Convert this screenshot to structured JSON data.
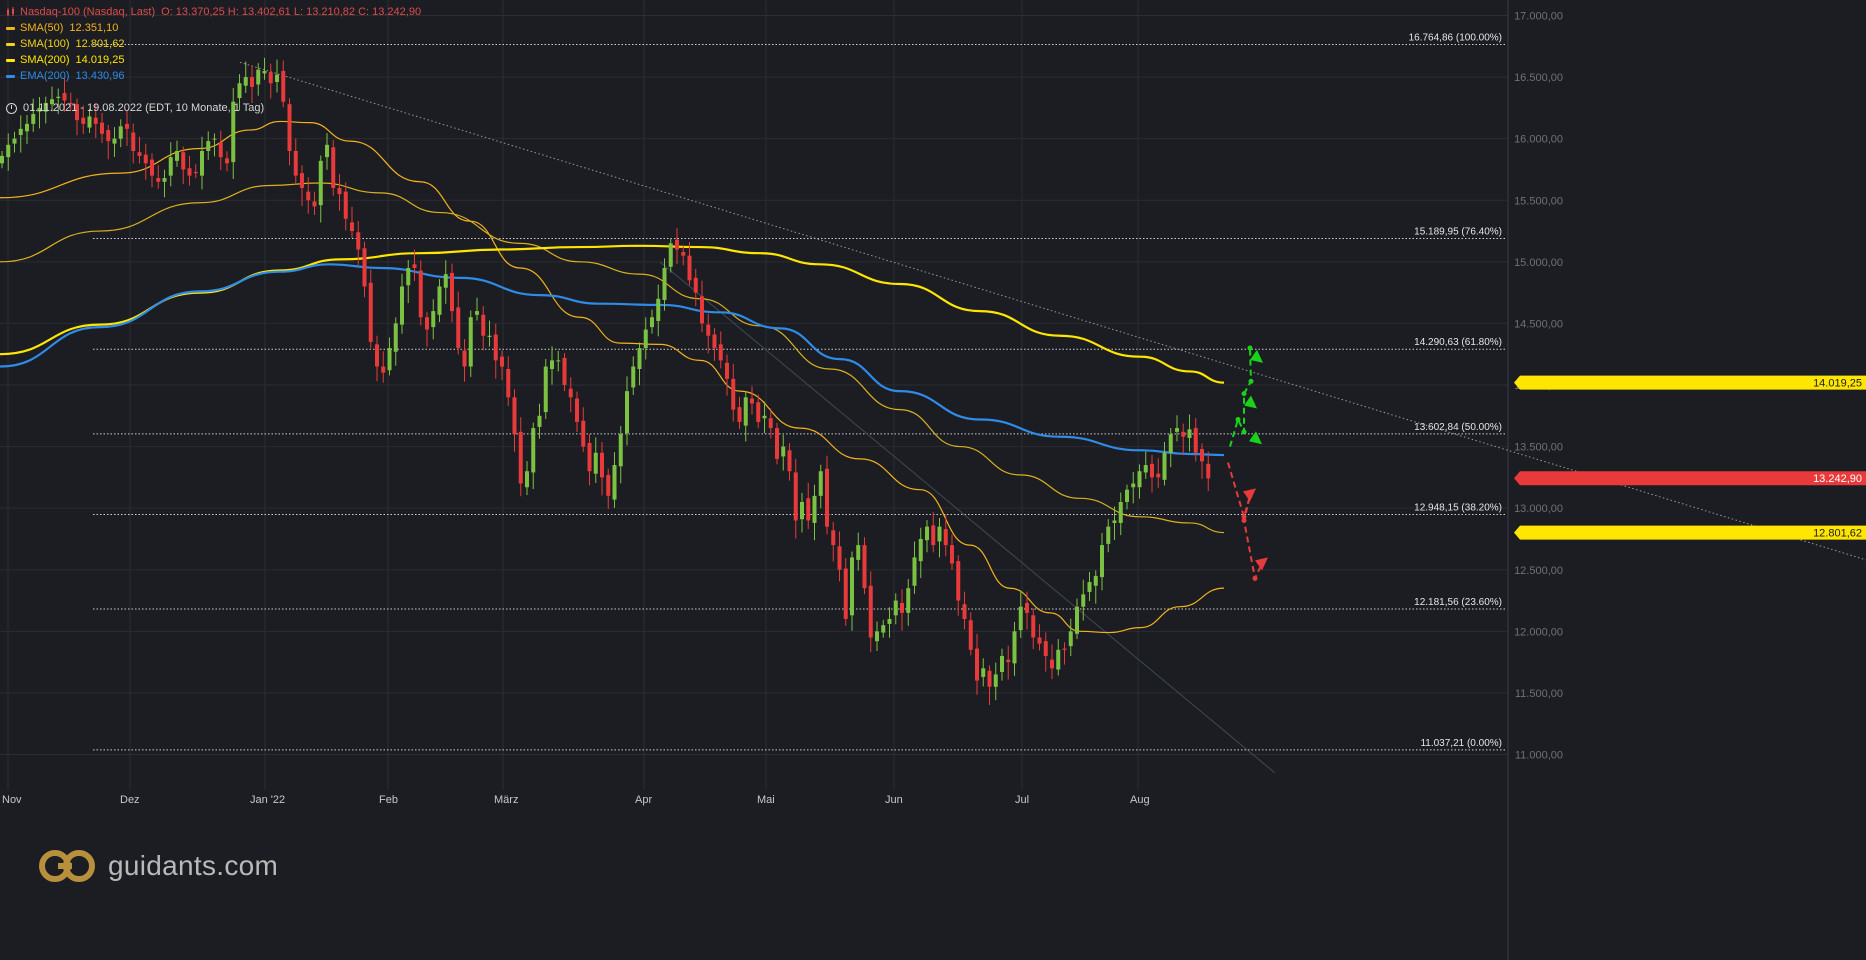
{
  "header": {
    "instrument": "Nasdaq-100 (Nasdaq, Last)",
    "ohlc": "O: 13.370,25  H: 13.402,61  L: 13.210,82  C: 13.242,90",
    "icon": "candlestick-icon"
  },
  "indicators": [
    {
      "label": "SMA(50)",
      "value": "12.351,10",
      "color": "#f3b21c"
    },
    {
      "label": "SMA(100)",
      "value": "12.801,62",
      "color": "#f3d21c"
    },
    {
      "label": "SMA(200)",
      "value": "14.019,25",
      "color": "#ffe600"
    },
    {
      "label": "EMA(200)",
      "value": "13.430,96",
      "color": "#2f8be8"
    }
  ],
  "range_text": "01.11.2021 - 19.08.2022   (EDT, 10 Monate, 1 Tag)",
  "logo_text": "guidants.com",
  "colors": {
    "up": "#7cc242",
    "down": "#e83a3a",
    "bg": "#1b1d22",
    "grid": "#2a2d33",
    "sma50": "#f3b21c",
    "sma100": "#d9b11f",
    "sma200": "#ffe600",
    "ema200": "#2f8be8"
  },
  "chart_data": {
    "type": "candlestick",
    "title": "Nasdaq-100 (Nasdaq, Last)",
    "x_ticks": [
      "Nov",
      "Dez",
      "Jan '22",
      "Feb",
      "März",
      "Apr",
      "Mai",
      "Jun",
      "Jul",
      "Aug"
    ],
    "y_ticks": [
      "17.000,00",
      "16.500,00",
      "16.000,00",
      "15.500,00",
      "15.000,00",
      "14.500,00",
      "14.000,00",
      "13.500,00",
      "13.000,00",
      "12.500,00",
      "12.000,00",
      "11.500,00",
      "11.000,00"
    ],
    "ylim": [
      10900,
      17050
    ],
    "fib_levels": [
      {
        "value": 16764.86,
        "label": "16.764,86 (100.00%)"
      },
      {
        "value": 15189.95,
        "label": "15.189,95 (76.40%)"
      },
      {
        "value": 14290.63,
        "label": "14.290,63 (61.80%)"
      },
      {
        "value": 13602.84,
        "label": "13.602,84 (50.00%)"
      },
      {
        "value": 12948.15,
        "label": "12.948,15 (38.20%)"
      },
      {
        "value": 12181.56,
        "label": "12.181,56 (23.60%)"
      },
      {
        "value": 11037.21,
        "label": "11.037,21 (0.00%)"
      }
    ],
    "price_badges": [
      {
        "value": 14019.25,
        "label": "14.019,25",
        "color": "#ffe600",
        "text": "#1b1d22"
      },
      {
        "value": 13242.9,
        "label": "13.242,90",
        "color": "#e83a3a",
        "text": "#ffffff"
      },
      {
        "value": 12801.62,
        "label": "12.801,62",
        "color": "#ffe600",
        "text": "#1b1d22"
      }
    ],
    "closes": [
      15860,
      15950,
      16000,
      16080,
      16120,
      16200,
      16250,
      16290,
      16320,
      16340,
      16310,
      16280,
      16150,
      16120,
      16180,
      16120,
      16040,
      15980,
      16000,
      16100,
      16080,
      15900,
      15860,
      15800,
      15700,
      15650,
      15680,
      15850,
      15900,
      15750,
      15700,
      15720,
      15900,
      15980,
      16000,
      15850,
      15800,
      16300,
      16450,
      16500,
      16420,
      16560,
      16550,
      16450,
      16520,
      16300,
      15900,
      15700,
      15600,
      15500,
      15450,
      15820,
      15950,
      15600,
      15550,
      15350,
      15250,
      15100,
      14800,
      14350,
      14150,
      14100,
      14300,
      14500,
      14800,
      14950,
      14950,
      14550,
      14450,
      14600,
      14800,
      14900,
      14600,
      14300,
      14150,
      14550,
      14600,
      14400,
      14400,
      14200,
      14150,
      13900,
      13600,
      13200,
      13300,
      13650,
      13750,
      14150,
      14200,
      14200,
      14000,
      13900,
      13700,
      13500,
      13300,
      13450,
      13250,
      13100,
      13350,
      13600,
      13950,
      14150,
      14300,
      14450,
      14550,
      14700,
      14950,
      15150,
      15100,
      15050,
      14850,
      14750,
      14500,
      14400,
      14300,
      14200,
      14050,
      13800,
      13700,
      13900,
      13850,
      13700,
      13750,
      13650,
      13400,
      13500,
      13300,
      12900,
      13050,
      12900,
      13100,
      13300,
      12850,
      12700,
      12500,
      12100,
      12600,
      12700,
      12350,
      11950,
      12000,
      12050,
      12100,
      12250,
      12150,
      12350,
      12600,
      12750,
      12850,
      12700,
      12850,
      12700,
      12550,
      12250,
      12100,
      11850,
      11600,
      11700,
      11550,
      11650,
      11800,
      11750,
      12000,
      12200,
      12150,
      11950,
      11900,
      11800,
      11700,
      11850,
      11850,
      12000,
      12200,
      12300,
      12400,
      12450,
      12700,
      12850,
      12900,
      13050,
      13150,
      13200,
      13300,
      13350,
      13250,
      13250,
      13450,
      13600,
      13650,
      13580,
      13640,
      13450,
      13380,
      13242
    ]
  }
}
